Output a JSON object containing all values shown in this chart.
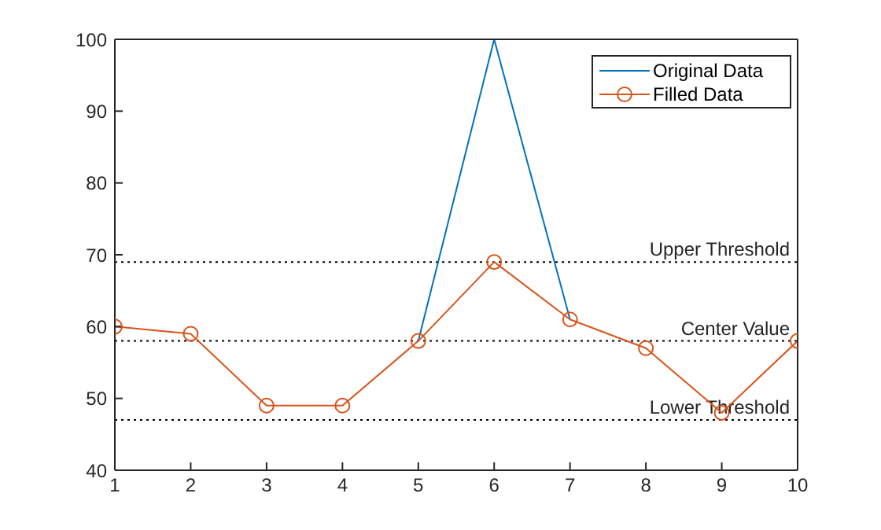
{
  "chart_data": {
    "type": "line",
    "x": [
      1,
      2,
      3,
      4,
      5,
      6,
      7,
      8,
      9,
      10
    ],
    "xlim": [
      1,
      10
    ],
    "xticks": [
      1,
      2,
      3,
      4,
      5,
      6,
      7,
      8,
      9,
      10
    ],
    "ylim": [
      40,
      100
    ],
    "yticks": [
      40,
      50,
      60,
      70,
      80,
      90,
      100
    ],
    "legend": "top right",
    "line_style": "solid",
    "series": [
      {
        "name": "Original Data",
        "color": "#0072bd",
        "marker": "none",
        "values": [
          null,
          null,
          null,
          null,
          58,
          100,
          61,
          null,
          null,
          null
        ]
      },
      {
        "name": "Filled Data",
        "color": "#d95319",
        "marker": "circle",
        "values": [
          60,
          59,
          49,
          49,
          58,
          69,
          61,
          57,
          48,
          58
        ]
      }
    ],
    "ref_lines": [
      {
        "axis": "y",
        "value": 69,
        "label": "Upper Threshold",
        "color": "#000000",
        "line_style": "dotted"
      },
      {
        "axis": "y",
        "value": 58,
        "label": "Center Value",
        "color": "#000000",
        "line_style": "dotted"
      },
      {
        "axis": "y",
        "value": 47,
        "label": "Lower Threshold",
        "color": "#000000",
        "line_style": "dotted"
      }
    ]
  }
}
